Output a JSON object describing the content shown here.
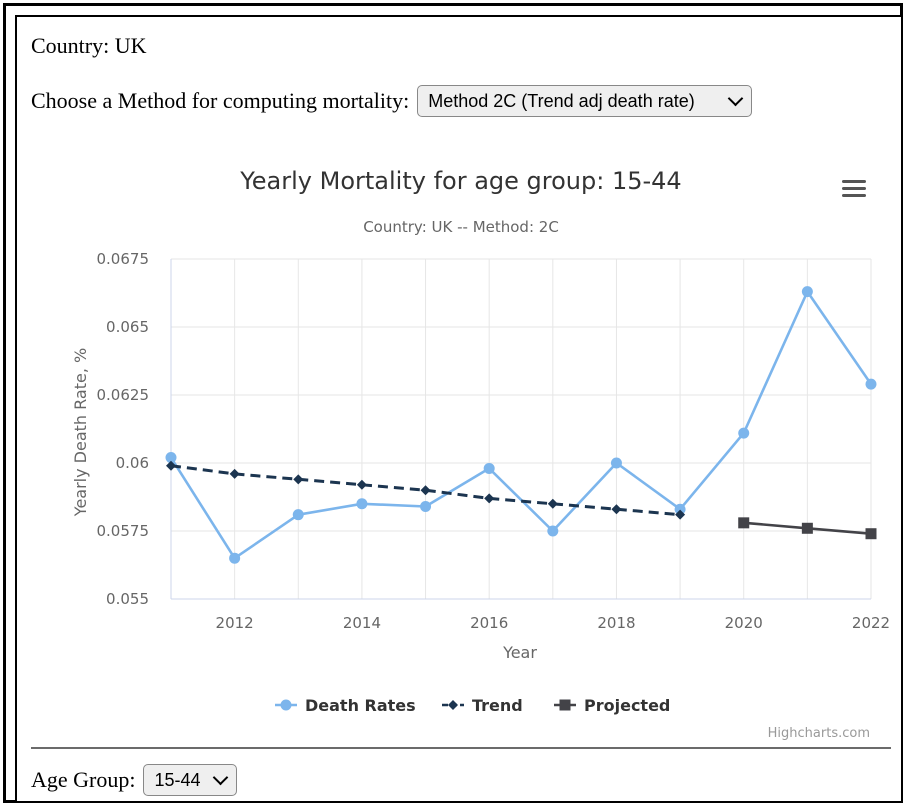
{
  "country_label": "Country: UK",
  "method": {
    "label": "Choose a Method for computing mortality:",
    "selected": "Method 2C (Trend adj death rate)"
  },
  "age_group": {
    "label": "Age Group:",
    "selected": "15-44"
  },
  "chart_menu_icon": "hamburger-menu-icon",
  "credits": "Highcharts.com",
  "colors": {
    "death_rates": "#7cb5ec",
    "trend": "#1c3550",
    "projected": "#434348",
    "grid": "#e6e6e6"
  },
  "chart_data": {
    "type": "line",
    "title": "Yearly Mortality for age group: 15-44",
    "subtitle": "Country: UK -- Method: 2C",
    "xlabel": "Year",
    "ylabel": "Yearly Death Rate, %",
    "xlim": [
      2011,
      2022
    ],
    "ylim": [
      0.055,
      0.0675
    ],
    "xticks": [
      2012,
      2014,
      2016,
      2018,
      2020,
      2022
    ],
    "yticks": [
      0.055,
      0.0575,
      0.06,
      0.0625,
      0.065,
      0.0675
    ],
    "ytick_labels": [
      "0.055",
      "0.0575",
      "0.06",
      "0.0625",
      "0.065",
      "0.0675"
    ],
    "grid": true,
    "legend_position": "bottom-center",
    "series": [
      {
        "name": "Death Rates",
        "marker": "circle",
        "dash": "solid",
        "x": [
          2011,
          2012,
          2013,
          2014,
          2015,
          2016,
          2017,
          2018,
          2019,
          2020,
          2021,
          2022
        ],
        "values": [
          0.0602,
          0.0565,
          0.0581,
          0.0585,
          0.0584,
          0.0598,
          0.0575,
          0.06,
          0.0583,
          0.0611,
          0.0663,
          0.0629
        ]
      },
      {
        "name": "Trend",
        "marker": "diamond",
        "dash": "dashed",
        "x": [
          2011,
          2012,
          2013,
          2014,
          2015,
          2016,
          2017,
          2018,
          2019
        ],
        "values": [
          0.0599,
          0.0596,
          0.0594,
          0.0592,
          0.059,
          0.0587,
          0.0585,
          0.0583,
          0.0581
        ]
      },
      {
        "name": "Projected",
        "marker": "square",
        "dash": "solid",
        "x": [
          2020,
          2021,
          2022
        ],
        "values": [
          0.0578,
          0.0576,
          0.0574
        ]
      }
    ]
  }
}
